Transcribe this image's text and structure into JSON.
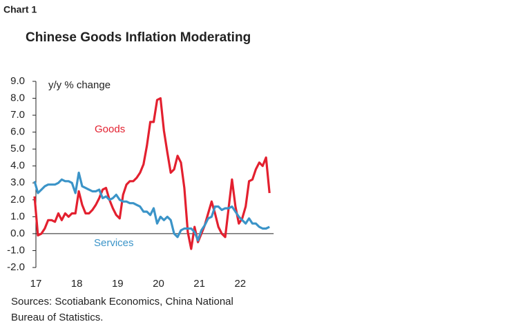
{
  "chart_label": "Chart 1",
  "chart_data": {
    "type": "line",
    "title": "Chinese Goods Inflation Moderating",
    "y_label": "y/y % change",
    "categories": [
      "17",
      null,
      null,
      null,
      null,
      null,
      null,
      null,
      null,
      null,
      null,
      null,
      "18",
      null,
      null,
      null,
      null,
      null,
      null,
      null,
      null,
      null,
      null,
      null,
      "19",
      null,
      null,
      null,
      null,
      null,
      null,
      null,
      null,
      null,
      null,
      null,
      "20",
      null,
      null,
      null,
      null,
      null,
      null,
      null,
      null,
      null,
      null,
      null,
      "21",
      null,
      null,
      null,
      null,
      null,
      null,
      null,
      null,
      null,
      null,
      null,
      "22",
      null,
      null,
      null,
      null,
      null,
      null,
      null,
      null,
      null
    ],
    "series": [
      {
        "name": "Goods",
        "color": "#e3202f",
        "values": [
          2.2,
          -0.1,
          0.0,
          0.3,
          0.8,
          0.8,
          0.7,
          1.2,
          0.8,
          1.2,
          1.0,
          1.2,
          1.2,
          2.5,
          1.7,
          1.2,
          1.2,
          1.4,
          1.7,
          2.1,
          2.6,
          2.7,
          2.0,
          1.5,
          1.1,
          0.9,
          2.3,
          2.9,
          3.1,
          3.1,
          3.3,
          3.6,
          4.1,
          5.2,
          6.6,
          6.6,
          7.9,
          8.0,
          6.1,
          4.8,
          3.6,
          3.8,
          4.6,
          4.2,
          2.7,
          0.1,
          -0.9,
          0.4,
          -0.5,
          0.0,
          0.5,
          1.2,
          1.9,
          1.2,
          0.4,
          0.0,
          -0.2,
          1.5,
          3.2,
          1.6,
          0.6,
          0.9,
          1.6,
          3.1,
          3.2,
          3.8,
          4.2,
          4.0,
          4.5,
          2.4
        ]
      },
      {
        "name": "Services",
        "color": "#3b94c8",
        "values": [
          3.1,
          2.4,
          2.6,
          2.8,
          2.9,
          2.9,
          2.9,
          3.0,
          3.2,
          3.1,
          3.1,
          3.0,
          2.4,
          3.6,
          2.8,
          2.7,
          2.6,
          2.5,
          2.5,
          2.6,
          2.1,
          2.2,
          2.0,
          2.1,
          2.3,
          2.0,
          1.9,
          1.9,
          1.8,
          1.8,
          1.7,
          1.6,
          1.3,
          1.3,
          1.1,
          1.5,
          0.6,
          1.0,
          0.8,
          1.0,
          0.8,
          0.0,
          -0.2,
          0.2,
          0.3,
          0.3,
          0.3,
          0.1,
          -0.4,
          0.2,
          0.5,
          0.9,
          1.0,
          1.6,
          1.6,
          1.4,
          1.5,
          1.5,
          1.6,
          1.3,
          1.0,
          0.8,
          0.6,
          0.9,
          0.6,
          0.6,
          0.4,
          0.3,
          0.3,
          0.4
        ]
      }
    ],
    "ylim": [
      -2,
      9
    ],
    "yticks": [
      {
        "value": -2,
        "label": "-2.0"
      },
      {
        "value": -1,
        "label": "-1.0"
      },
      {
        "value": 0,
        "label": "0.0"
      },
      {
        "value": 1,
        "label": "1.0"
      },
      {
        "value": 2,
        "label": "2.0"
      },
      {
        "value": 3,
        "label": "3.0"
      },
      {
        "value": 4,
        "label": "4.0"
      },
      {
        "value": 5,
        "label": "5.0"
      },
      {
        "value": 6,
        "label": "6.0"
      },
      {
        "value": 7,
        "label": "7.0"
      },
      {
        "value": 8,
        "label": "8.0"
      },
      {
        "value": 9,
        "label": "9.0"
      }
    ]
  },
  "sources": [
    "Sources: Scotiabank Economics, China National",
    "Bureau of Statistics."
  ]
}
